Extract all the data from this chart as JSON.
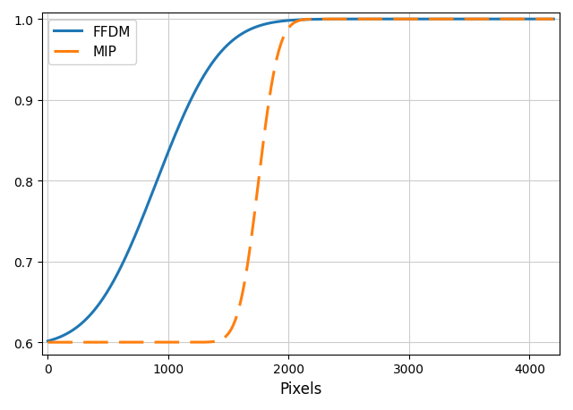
{
  "title": "",
  "xlabel": "Pixels",
  "ylabel": "",
  "xlim": [
    -50,
    4250
  ],
  "ylim": [
    0.585,
    1.008
  ],
  "yticks": [
    0.6,
    0.7,
    0.8,
    0.9,
    1.0
  ],
  "xticks": [
    0,
    1000,
    2000,
    3000,
    4000
  ],
  "ffdm_color": "#1f77b4",
  "mip_color": "#ff7f0e",
  "ffdm_label": "FFDM",
  "mip_label": "MIP",
  "ffdm_linewidth": 2.2,
  "mip_linewidth": 2.2,
  "grid": true,
  "legend_loc": "upper left",
  "figsize": [
    6.4,
    4.6
  ],
  "dpi": 100
}
